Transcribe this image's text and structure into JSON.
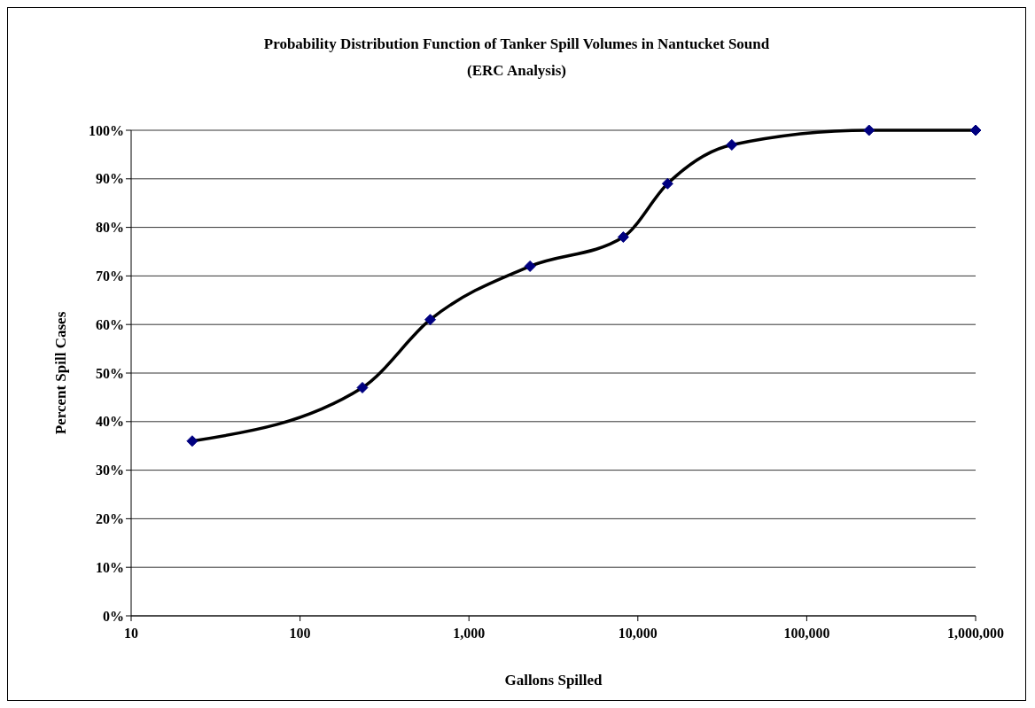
{
  "chart_data": {
    "type": "line",
    "title": "Probability Distribution Function of Tanker Spill Volumes in Nantucket Sound",
    "subtitle": "(ERC Analysis)",
    "xlabel": "Gallons Spilled",
    "ylabel": "Percent Spill Cases",
    "x": [
      23,
      234,
      590,
      2300,
      8200,
      15000,
      36000,
      234000,
      1000000
    ],
    "series": [
      {
        "color": "#000000",
        "values": [
          36,
          47,
          61,
          72,
          78,
          89,
          97,
          100,
          100
        ]
      }
    ],
    "log": "x",
    "xlim": [
      10,
      1000000
    ],
    "xticks": [
      10,
      100,
      {
        "value": 1000,
        "label": "1,000"
      },
      {
        "value": 10000,
        "label": "10,000"
      },
      {
        "value": 100000,
        "label": "100,000"
      },
      {
        "value": 1000000,
        "label": "1,000,000"
      }
    ],
    "ylim": [
      0,
      100
    ],
    "yticks": [
      {
        "value": 0,
        "label": "0%"
      },
      {
        "value": 10,
        "label": "10%"
      },
      {
        "value": 20,
        "label": "20%"
      },
      {
        "value": 30,
        "label": "30%"
      },
      {
        "value": 40,
        "label": "40%"
      },
      {
        "value": 50,
        "label": "50%"
      },
      {
        "value": 60,
        "label": "60%"
      },
      {
        "value": 70,
        "label": "70%"
      },
      {
        "value": 80,
        "label": "80%"
      },
      {
        "value": 90,
        "label": "90%"
      },
      {
        "value": 100,
        "label": "100%"
      }
    ],
    "grid": "y",
    "marker": "diamond",
    "line_style": "solid"
  }
}
